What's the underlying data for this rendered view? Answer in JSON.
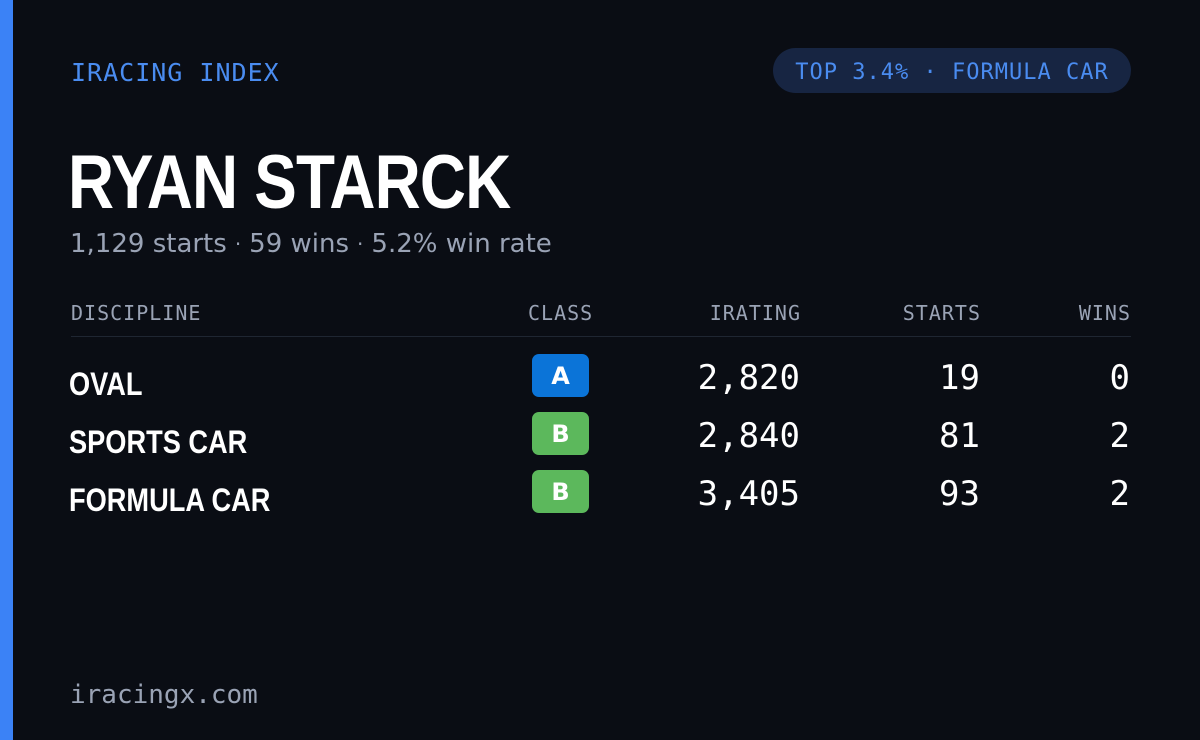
{
  "header": {
    "brand": "IRACING INDEX",
    "rank_badge": "TOP 3.4% · FORMULA CAR"
  },
  "driver": {
    "name": "RYAN STARCK",
    "starts_text": "1,129 starts",
    "wins_text": "59 wins",
    "win_rate_text": "5.2% win rate",
    "separator": "·"
  },
  "table": {
    "headers": {
      "discipline": "DISCIPLINE",
      "class": "CLASS",
      "irating": "IRATING",
      "starts": "STARTS",
      "wins": "WINS"
    },
    "rows": [
      {
        "discipline": "OVAL",
        "class": "A",
        "class_color": "#0b74d8",
        "irating": "2,820",
        "starts": "19",
        "wins": "0"
      },
      {
        "discipline": "SPORTS CAR",
        "class": "B",
        "class_color": "#5cb85c",
        "irating": "2,840",
        "starts": "81",
        "wins": "2"
      },
      {
        "discipline": "FORMULA CAR",
        "class": "B",
        "class_color": "#5cb85c",
        "irating": "3,405",
        "starts": "93",
        "wins": "2"
      }
    ]
  },
  "footer": {
    "url": "iracingx.com"
  },
  "colors": {
    "background": "#0a0d14",
    "accent": "#3b82f6",
    "badge_bg": "#172542",
    "muted_text": "#9aa3b5"
  }
}
